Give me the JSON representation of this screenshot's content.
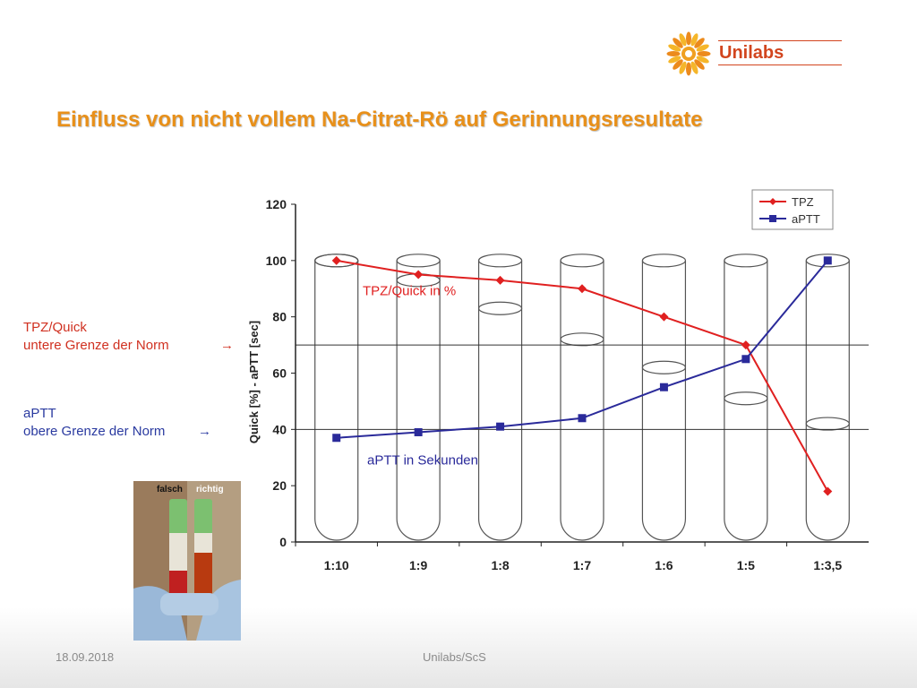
{
  "header": {
    "logo_text": "Unilabs",
    "title": "Einfluss von nicht vollem Na-Citrat-Rö auf Gerinnungsresultate"
  },
  "notes": {
    "tpz_line1": "TPZ/Quick",
    "tpz_line2": "untere Grenze der Norm",
    "aptt_line1": "aPTT",
    "aptt_line2": "obere Grenze der Norm",
    "arrow": "→"
  },
  "photo": {
    "label_left": "falsch",
    "label_right": "richtig"
  },
  "footer": {
    "date": "18.09.2018",
    "center": "Unilabs/ScS"
  },
  "colors": {
    "tpz": "#e02020",
    "aptt": "#2a2a9a",
    "title": "#e8901a",
    "logo": "#d2451e",
    "note_tpz": "#d03020",
    "note_aptt": "#2a3aa0"
  },
  "chart_data": {
    "type": "line",
    "categories": [
      "1:10",
      "1:9",
      "1:8",
      "1:7",
      "1:6",
      "1:5",
      "1:3,5"
    ],
    "series": [
      {
        "name": "TPZ",
        "values": [
          100,
          95,
          93,
          90,
          80,
          70,
          18
        ],
        "color": "#e02020",
        "marker": "diamond"
      },
      {
        "name": "aPTT",
        "values": [
          37,
          39,
          41,
          44,
          55,
          65,
          100
        ],
        "color": "#2a2a9a",
        "marker": "square"
      }
    ],
    "ylabel": "Quick [%] - aPTT [sec]",
    "ylim": [
      0,
      120
    ],
    "yticks": [
      0,
      20,
      40,
      60,
      80,
      100,
      120
    ],
    "reference_lines": [
      70,
      40
    ],
    "fill_levels": [
      100,
      93,
      83,
      72,
      62,
      51,
      42
    ],
    "annotations": [
      "TPZ/Quick in %",
      "aPTT in Sekunden"
    ],
    "legend": "top-right"
  }
}
